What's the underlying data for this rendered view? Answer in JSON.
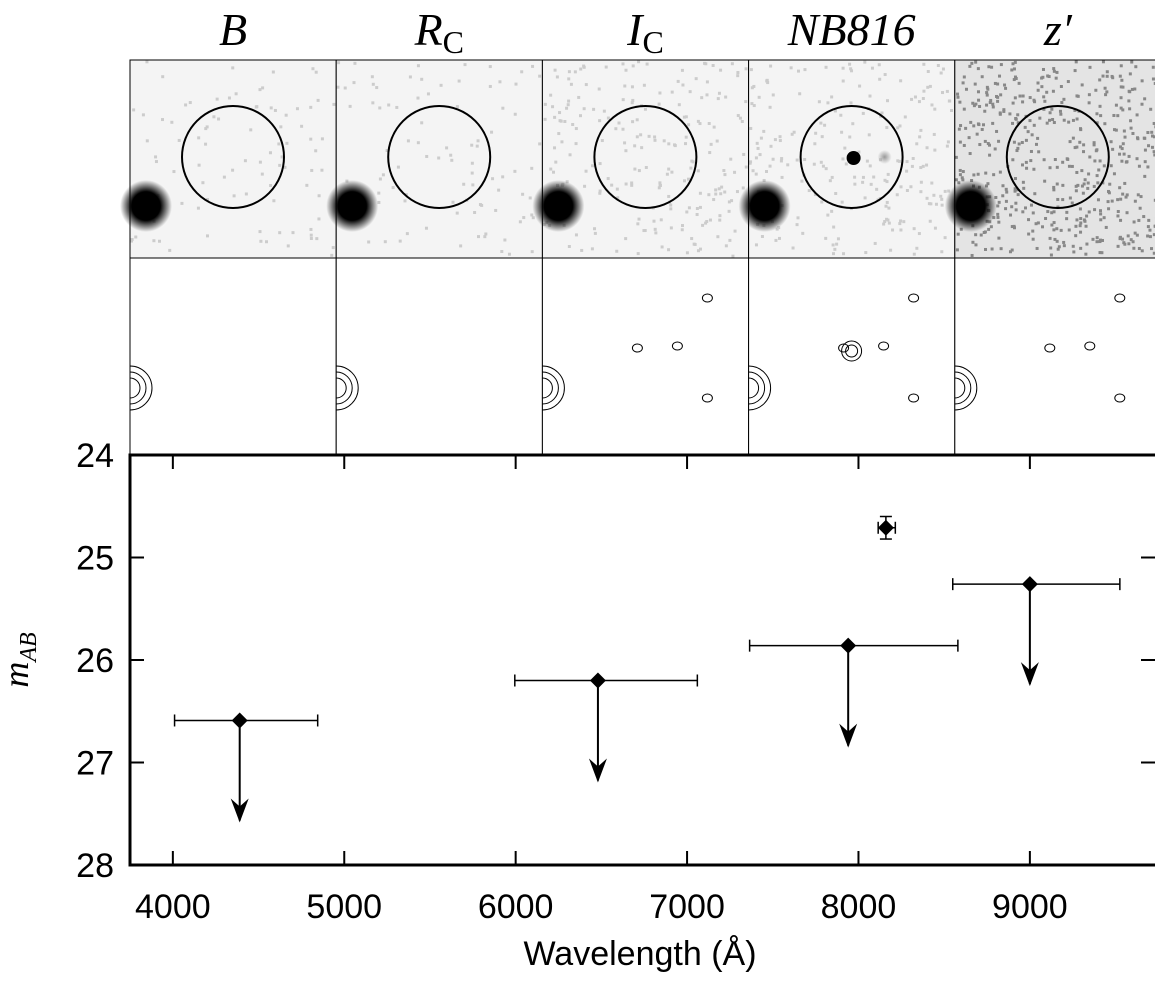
{
  "chart_data": {
    "type": "scatter",
    "panel_labels": [
      {
        "main": "B"
      },
      {
        "main": "R",
        "sub": "C"
      },
      {
        "main": "I",
        "sub": "C"
      },
      {
        "main": "NB816"
      },
      {
        "main": "z′"
      }
    ],
    "xlabel": "Wavelength (Å)",
    "ylabel": {
      "main": "m",
      "sub": "AB"
    },
    "x": [
      4390,
      6480,
      7940,
      8160,
      9000
    ],
    "values": [
      26.59,
      26.2,
      25.86,
      24.71,
      25.26
    ],
    "x_low": [
      4010,
      5995,
      7365,
      8115,
      8550
    ],
    "x_high": [
      4845,
      7060,
      8580,
      8215,
      9525
    ],
    "yerr": [
      null,
      null,
      null,
      0.11,
      null
    ],
    "upper_limit": [
      true,
      true,
      true,
      false,
      true
    ],
    "color": "#000000",
    "xlim": [
      3750,
      9730
    ],
    "xticks": [
      4000,
      5000,
      6000,
      7000,
      8000,
      9000
    ],
    "ylim": [
      24,
      28
    ],
    "yticks": [
      24,
      25,
      26,
      27,
      28
    ],
    "y_inverted": true
  }
}
